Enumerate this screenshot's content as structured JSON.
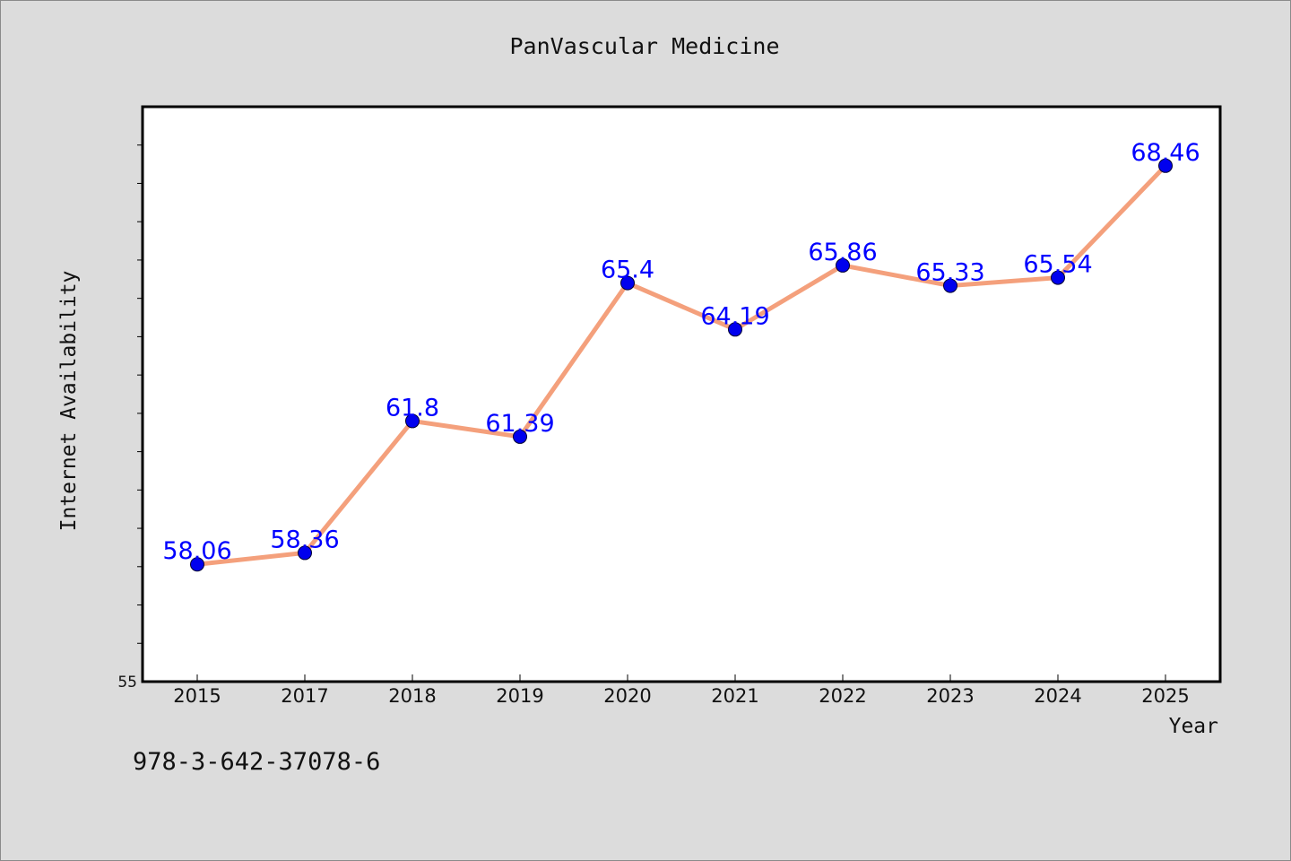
{
  "chart_data": {
    "type": "line",
    "title": "PanVascular Medicine",
    "xlabel": "Year",
    "ylabel": "Internet Availability",
    "categories": [
      "2015",
      "2017",
      "2018",
      "2019",
      "2020",
      "2021",
      "2022",
      "2023",
      "2024",
      "2025"
    ],
    "values": [
      58.06,
      58.36,
      61.8,
      61.39,
      65.4,
      64.19,
      65.86,
      65.33,
      65.54,
      68.46
    ],
    "data_labels": [
      "58.06",
      "58.36",
      "61.8",
      "61.39",
      "65.4",
      "64.19",
      "65.86",
      "65.33",
      "65.54",
      "68.46"
    ],
    "ylim": [
      55,
      70
    ],
    "y_tick_labels": [
      "55"
    ],
    "grid": false,
    "legend": "none",
    "colors": {
      "line": "#f4a07c",
      "marker": "#0000ee",
      "label": "#0000ff",
      "plot_bg": "#ffffff",
      "page_bg": "#dcdcdc"
    }
  },
  "footer": {
    "isbn": "978-3-642-37078-6"
  }
}
